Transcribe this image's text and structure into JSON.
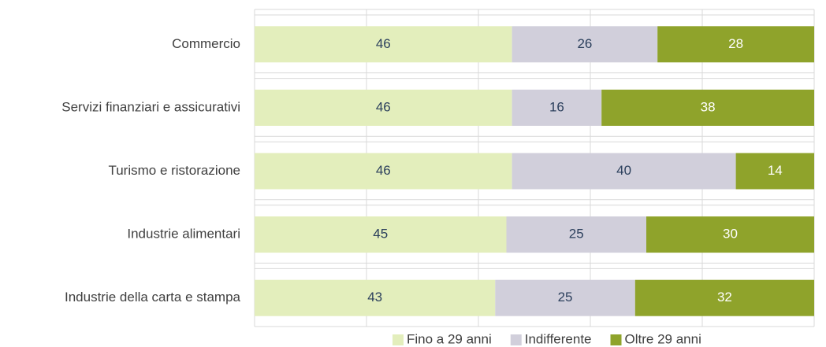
{
  "chart_data": {
    "type": "stacked_bar_horizontal",
    "categories": [
      "Commercio",
      "Servizi finanziari e assicurativi",
      "Turismo e ristorazione",
      "Industrie alimentari",
      "Industrie della carta e stampa"
    ],
    "series": [
      {
        "name": "Fino a 29 anni",
        "color": "#e3eebc",
        "values": [
          46,
          46,
          46,
          45,
          43
        ]
      },
      {
        "name": "Indifferente",
        "color": "#d1cfdb",
        "values": [
          26,
          16,
          40,
          25,
          25
        ]
      },
      {
        "name": "Oltre 29 anni",
        "color": "#8fa32b",
        "values": [
          28,
          38,
          14,
          30,
          32
        ]
      }
    ],
    "label_colors": [
      "#2b3f5c",
      "#2b3f5c",
      "#ffffff"
    ],
    "xlim": [
      0,
      100
    ],
    "xticks": [
      0,
      20,
      40,
      60,
      80,
      100
    ],
    "grid": true,
    "legend": "bottom"
  }
}
